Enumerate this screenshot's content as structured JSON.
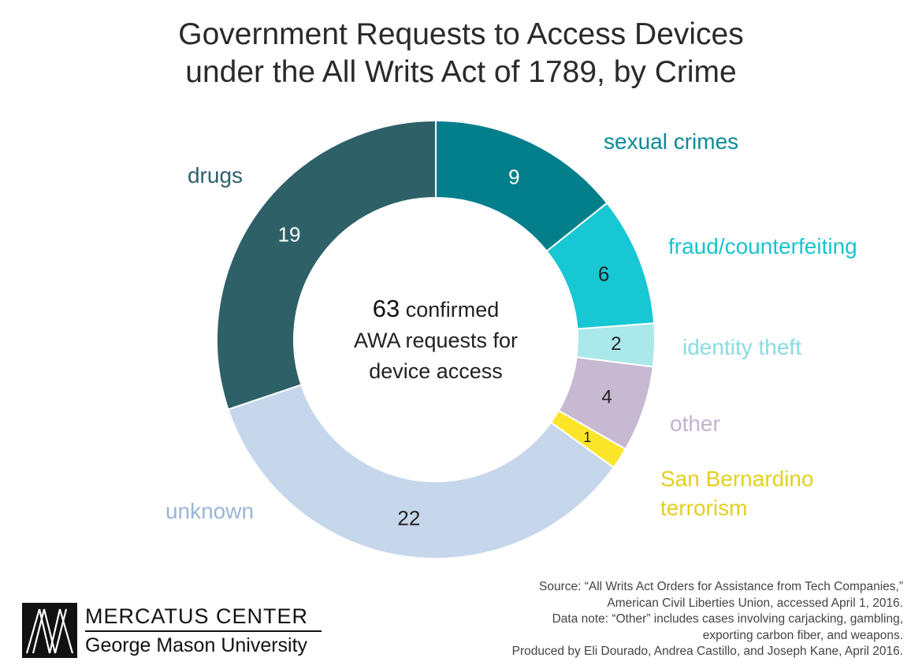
{
  "title": {
    "line1": "Government Requests to Access Devices",
    "line2": "under the All Writs Act of 1789, by Crime"
  },
  "center_text": {
    "total": "63",
    "line1_suffix": " confirmed",
    "line2": "AWA requests for",
    "line3": "device access"
  },
  "chart_data": {
    "type": "pie",
    "style": "donut",
    "total": 63,
    "series": [
      {
        "label": "sexual crimes",
        "value": 9,
        "color": "#037f8c",
        "label_color": "#0a8a96",
        "value_text_color": "#ffffff"
      },
      {
        "label": "fraud/counterfeiting",
        "value": 6,
        "color": "#17c8d4",
        "label_color": "#17c4d0",
        "value_text_color": "#222222"
      },
      {
        "label": "identity theft",
        "value": 2,
        "color": "#abe8ea",
        "label_color": "#86dde2",
        "value_text_color": "#222222"
      },
      {
        "label": "other",
        "value": 4,
        "color": "#c7b9d1",
        "label_color": "#c3b2cf",
        "value_text_color": "#222222"
      },
      {
        "label": "San Bernardino terrorism",
        "label_lines": [
          "San Bernardino",
          "terrorism"
        ],
        "value": 1,
        "color": "#fbe529",
        "label_color": "#e3cf1f",
        "value_text_color": "#222222"
      },
      {
        "label": "unknown",
        "value": 22,
        "color": "#c6d7ec",
        "label_color": "#98b5d8",
        "value_text_color": "#222222"
      },
      {
        "label": "drugs",
        "value": 19,
        "color": "#2e6067",
        "label_color": "#2e6068",
        "value_text_color": "#ffffff"
      }
    ]
  },
  "source": {
    "line1": "Source: “All Writs Act Orders for Assistance from Tech Companies,”",
    "line2": "American Civil Liberties Union, accessed April 1, 2016.",
    "line3": "Data note: “Other” includes cases involving carjacking, gambling,",
    "line4": "exporting carbon fiber, and weapons.",
    "line5": "Produced by Eli Dourado, Andrea Castillo, and Joseph Kane, April 2016."
  },
  "logo": {
    "line1": "MERCATUS CENTER",
    "line2": "George Mason University"
  }
}
